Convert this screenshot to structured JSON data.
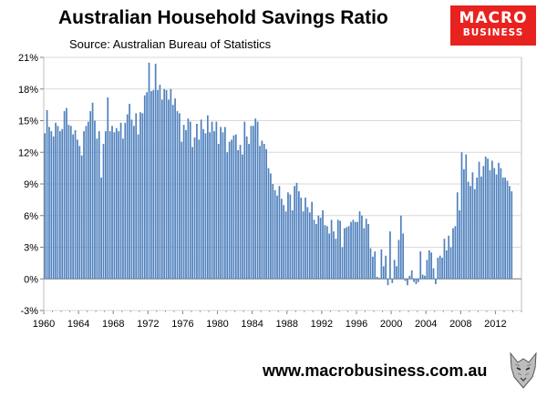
{
  "header": {
    "title": "Australian Household Savings Ratio",
    "source": "Source: Australian Bureau of Statistics"
  },
  "logo": {
    "line1": "MACRO",
    "line2": "BUSINESS"
  },
  "footer": {
    "url": "www.macrobusiness.com.au"
  },
  "colors": {
    "bar": "#4f81bd",
    "plot_bg": "#ffffff",
    "grid": "#d9d9d9",
    "logo_bg": "#e8231f"
  },
  "icons": {
    "mascot": "wolf-icon"
  },
  "chart_data": {
    "type": "bar",
    "title": "Australian Household Savings Ratio",
    "xlabel": "",
    "ylabel": "",
    "ylim": [
      -3,
      21
    ],
    "yticks": [
      -3,
      0,
      3,
      6,
      9,
      12,
      15,
      18,
      21
    ],
    "ytick_labels": [
      "-3%",
      "0%",
      "3%",
      "6%",
      "9%",
      "12%",
      "15%",
      "18%",
      "21%"
    ],
    "xlim": [
      1960,
      2015
    ],
    "xticks": [
      1960,
      1964,
      1968,
      1972,
      1976,
      1980,
      1984,
      1988,
      1992,
      1996,
      2000,
      2004,
      2008,
      2012
    ],
    "xtick_labels": [
      "1960",
      "1964",
      "1968",
      "1972",
      "1976",
      "1980",
      "1984",
      "1988",
      "1992",
      "1996",
      "2000",
      "2004",
      "2008",
      "2012"
    ],
    "frequency": "quarterly",
    "start": 1960,
    "values": [
      13.8,
      16.0,
      14.4,
      14.0,
      13.5,
      14.8,
      14.5,
      14.0,
      14.2,
      15.9,
      16.2,
      14.6,
      14.5,
      13.7,
      14.1,
      13.2,
      12.6,
      11.7,
      14.0,
      14.5,
      14.9,
      15.9,
      16.7,
      15.0,
      13.3,
      14.0,
      9.6,
      12.8,
      14.0,
      17.2,
      14.0,
      14.5,
      13.9,
      14.3,
      14.0,
      14.8,
      13.3,
      14.8,
      15.6,
      16.6,
      15.1,
      14.5,
      15.7,
      13.7,
      15.8,
      15.7,
      17.4,
      17.7,
      20.5,
      17.8,
      17.9,
      20.4,
      17.9,
      18.4,
      17.0,
      18.0,
      17.9,
      17.0,
      18.0,
      16.5,
      17.1,
      15.9,
      15.7,
      13.0,
      14.6,
      14.1,
      15.2,
      14.9,
      12.5,
      13.4,
      14.7,
      13.2,
      15.1,
      14.2,
      13.8,
      15.5,
      13.9,
      14.9,
      14.0,
      14.9,
      12.8,
      14.4,
      13.9,
      14.4,
      12.0,
      13.0,
      13.2,
      13.6,
      13.7,
      12.2,
      12.7,
      11.8,
      14.9,
      13.5,
      12.8,
      14.5,
      14.5,
      15.2,
      14.9,
      12.6,
      13.1,
      12.8,
      12.3,
      10.5,
      10.0,
      9.0,
      8.4,
      7.9,
      8.8,
      7.6,
      7.0,
      6.4,
      8.2,
      8.0,
      6.5,
      8.8,
      9.1,
      8.3,
      7.7,
      6.4,
      7.7,
      6.8,
      6.3,
      7.3,
      5.6,
      5.2,
      6.0,
      5.8,
      6.5,
      5.1,
      5.0,
      4.3,
      5.6,
      4.5,
      3.8,
      5.6,
      5.5,
      3.0,
      4.8,
      4.9,
      5.0,
      5.4,
      5.6,
      5.4,
      5.4,
      6.4,
      6.0,
      4.8,
      5.7,
      5.2,
      2.9,
      2.1,
      2.6,
      0.2,
      0.1,
      2.8,
      1.2,
      2.2,
      -0.6,
      4.5,
      -0.4,
      1.8,
      1.2,
      3.7,
      6.0,
      4.3,
      -0.2,
      -0.6,
      0.3,
      0.8,
      -0.3,
      -0.5,
      -0.3,
      2.6,
      0.4,
      0.3,
      1.8,
      2.7,
      2.5,
      1.0,
      -0.5,
      2.0,
      2.2,
      2.0,
      3.8,
      2.7,
      4.1,
      3.0,
      4.8,
      5.0,
      8.2,
      6.5,
      12.0,
      10.4,
      11.8,
      9.2,
      8.8,
      10.1,
      8.5,
      9.6,
      11.1,
      9.7,
      10.7,
      11.6,
      11.4,
      10.3,
      11.2,
      10.5,
      9.9,
      11.0,
      10.5,
      9.6,
      9.6,
      9.3,
      8.8,
      8.3
    ]
  }
}
